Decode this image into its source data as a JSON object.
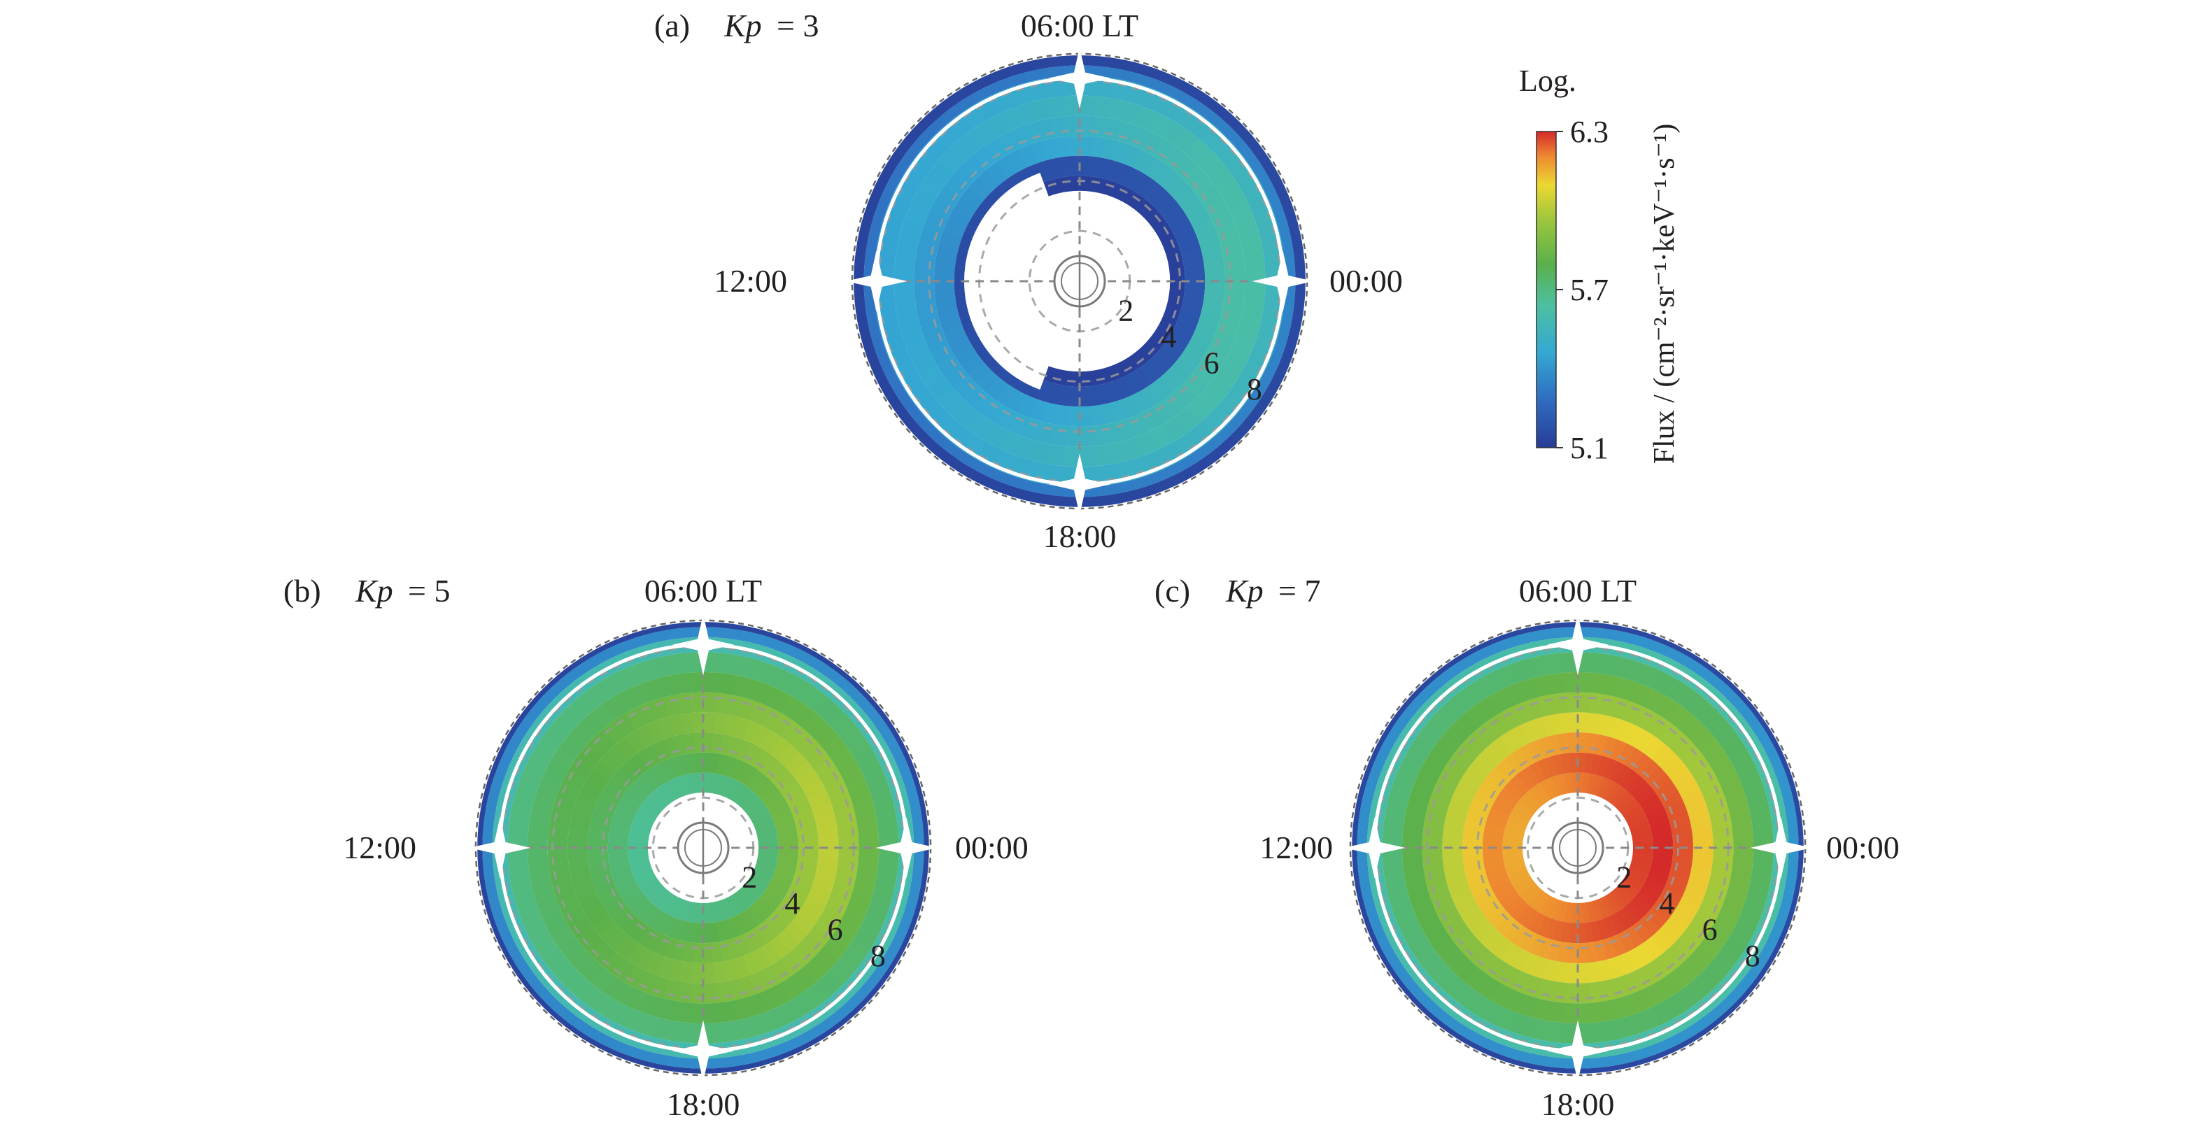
{
  "figure": {
    "panels": [
      {
        "id": "a",
        "tag": "(a)",
        "kp_symbol": "Kp",
        "kp_value": "= 3"
      },
      {
        "id": "b",
        "tag": "(b)",
        "kp_symbol": "Kp",
        "kp_value": "= 5"
      },
      {
        "id": "c",
        "tag": "(c)",
        "kp_symbol": "Kp",
        "kp_value": "= 7"
      }
    ],
    "lt_labels": {
      "top": "06:00 LT",
      "left": "12:00",
      "right": "00:00",
      "bottom": "18:00"
    },
    "radial_labels": [
      "2",
      "4",
      "6",
      "8"
    ],
    "colorbar": {
      "title": "Log.",
      "axis_label": "Flux / (cm⁻²·sr⁻¹·keV⁻¹·s⁻¹)",
      "ticks": [
        "6.3",
        "5.7",
        "5.1"
      ],
      "tick_values": [
        6.3,
        5.7,
        5.1
      ],
      "range": [
        5.1,
        6.3
      ]
    }
  },
  "chart_data": [
    {
      "type": "heatmap",
      "projection": "polar",
      "title": "(a) Kp = 3",
      "angular_axis": {
        "unit": "LT (h)",
        "labels": [
          "06:00 LT",
          "12:00",
          "18:00",
          "00:00"
        ]
      },
      "radial_axis": {
        "labels": [
          2,
          4,
          6,
          8
        ],
        "range": [
          1,
          9.2
        ]
      },
      "colorscale": "jet",
      "crange": [
        5.1,
        6.3
      ],
      "no_data_inner": {
        "day": 4.6,
        "night": 3.6
      },
      "rings": [
        {
          "r": [
            3.6,
            4.2
          ],
          "flux_night": 5.12,
          "flux_day": 5.12
        },
        {
          "r": [
            4.2,
            5.0
          ],
          "flux_night": 5.2,
          "flux_day": 5.16
        },
        {
          "r": [
            5.0,
            5.8
          ],
          "flux_night": 5.58,
          "flux_day": 5.38
        },
        {
          "r": [
            5.8,
            6.6
          ],
          "flux_night": 5.62,
          "flux_day": 5.42
        },
        {
          "r": [
            6.6,
            7.4
          ],
          "flux_night": 5.62,
          "flux_day": 5.46
        },
        {
          "r": [
            7.4,
            8.2
          ],
          "flux_night": 5.55,
          "flux_day": 5.45
        },
        {
          "r": [
            8.2,
            8.6
          ],
          "flux_night": 5.35,
          "flux_day": 5.3
        },
        {
          "r": [
            8.6,
            9.0
          ],
          "flux_night": 5.15,
          "flux_day": 5.13
        }
      ]
    },
    {
      "type": "heatmap",
      "projection": "polar",
      "title": "(b) Kp = 5",
      "angular_axis": {
        "unit": "LT (h)",
        "labels": [
          "06:00 LT",
          "12:00",
          "18:00",
          "00:00"
        ]
      },
      "radial_axis": {
        "labels": [
          2,
          4,
          6,
          8
        ],
        "range": [
          1,
          9.2
        ]
      },
      "colorscale": "jet",
      "crange": [
        5.1,
        6.3
      ],
      "no_data_inner": {
        "day": 2.2,
        "night": 2.2
      },
      "rings": [
        {
          "r": [
            2.2,
            3.0
          ],
          "flux_night": 5.72,
          "flux_day": 5.66
        },
        {
          "r": [
            3.0,
            3.8
          ],
          "flux_night": 5.86,
          "flux_day": 5.72
        },
        {
          "r": [
            3.8,
            4.6
          ],
          "flux_night": 5.96,
          "flux_day": 5.76
        },
        {
          "r": [
            4.6,
            5.4
          ],
          "flux_night": 6.02,
          "flux_day": 5.78
        },
        {
          "r": [
            5.4,
            6.2
          ],
          "flux_night": 5.96,
          "flux_day": 5.78
        },
        {
          "r": [
            6.2,
            7.0
          ],
          "flux_night": 5.84,
          "flux_day": 5.74
        },
        {
          "r": [
            7.0,
            7.8
          ],
          "flux_night": 5.74,
          "flux_day": 5.7
        },
        {
          "r": [
            7.8,
            8.4
          ],
          "flux_night": 5.6,
          "flux_day": 5.58
        },
        {
          "r": [
            8.4,
            8.8
          ],
          "flux_night": 5.38,
          "flux_day": 5.36
        },
        {
          "r": [
            8.8,
            9.0
          ],
          "flux_night": 5.14,
          "flux_day": 5.13
        }
      ]
    },
    {
      "type": "heatmap",
      "projection": "polar",
      "title": "(c) Kp = 7",
      "angular_axis": {
        "unit": "LT (h)",
        "labels": [
          "06:00 LT",
          "12:00",
          "18:00",
          "00:00"
        ]
      },
      "radial_axis": {
        "labels": [
          2,
          4,
          6,
          8
        ],
        "range": [
          1,
          9.2
        ]
      },
      "colorscale": "jet",
      "crange": [
        5.1,
        6.3
      ],
      "no_data_inner": {
        "day": 2.2,
        "night": 2.2
      },
      "rings": [
        {
          "r": [
            2.2,
            3.0
          ],
          "flux_night": 6.28,
          "flux_day": 6.16
        },
        {
          "r": [
            3.0,
            3.8
          ],
          "flux_night": 6.3,
          "flux_day": 6.2
        },
        {
          "r": [
            3.8,
            4.6
          ],
          "flux_night": 6.26,
          "flux_day": 6.12
        },
        {
          "r": [
            4.6,
            5.4
          ],
          "flux_night": 6.12,
          "flux_day": 6.02
        },
        {
          "r": [
            5.4,
            6.2
          ],
          "flux_night": 5.98,
          "flux_day": 5.9
        },
        {
          "r": [
            6.2,
            7.0
          ],
          "flux_night": 5.86,
          "flux_day": 5.8
        },
        {
          "r": [
            7.0,
            7.8
          ],
          "flux_night": 5.76,
          "flux_day": 5.72
        },
        {
          "r": [
            7.8,
            8.4
          ],
          "flux_night": 5.62,
          "flux_day": 5.6
        },
        {
          "r": [
            8.4,
            8.8
          ],
          "flux_night": 5.4,
          "flux_day": 5.38
        },
        {
          "r": [
            8.8,
            9.0
          ],
          "flux_night": 5.15,
          "flux_day": 5.14
        }
      ]
    }
  ]
}
